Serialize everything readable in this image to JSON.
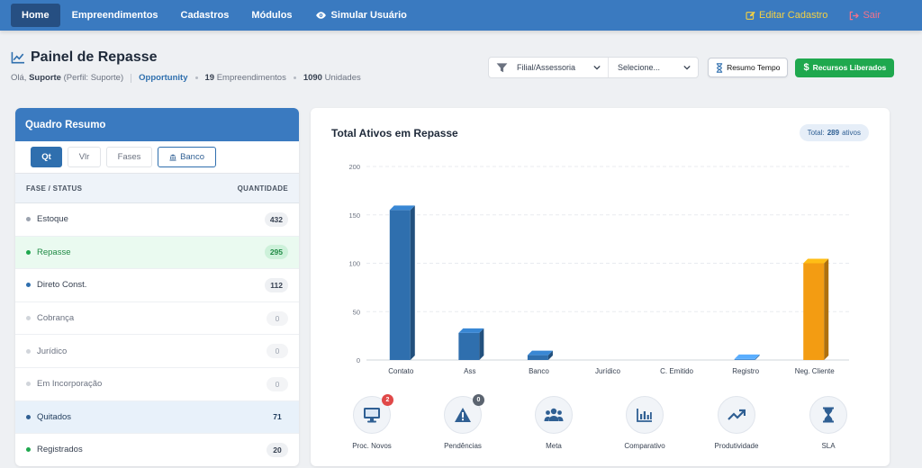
{
  "nav": {
    "items": [
      {
        "label": "Home",
        "active": true
      },
      {
        "label": "Empreendimentos"
      },
      {
        "label": "Cadastros"
      },
      {
        "label": "Módulos"
      },
      {
        "label": "Simular Usuário",
        "icon": "eye-icon"
      }
    ],
    "edit_label": "Editar Cadastro",
    "exit_label": "Sair"
  },
  "header": {
    "title": "Painel de Repasse",
    "greeting_prefix": "Olá,",
    "user": "Suporte",
    "profile": "(Perfil: Suporte)",
    "link": "Opportunity",
    "empreendimentos_count": "19",
    "empreendimentos_label": "Empreendimentos",
    "unidades_count": "1090",
    "unidades_label": "Unidades"
  },
  "filters": {
    "filial_label": "Filial/Assessoria",
    "select_label": "Selecione...",
    "tempo_label": "Resumo Tempo",
    "recursos_label": "Recursos Liberados"
  },
  "summary": {
    "title": "Quadro Resumo",
    "tabs": [
      "Qt",
      "Vlr",
      "Fases",
      "Banco"
    ],
    "col_status": "FASE / STATUS",
    "col_qty": "QUANTIDADE",
    "rows": [
      {
        "label": "Estoque",
        "value": "432",
        "color": "#9ca3af",
        "text": "#374151",
        "hl": ""
      },
      {
        "label": "Repasse",
        "value": "295",
        "color": "#1fa84e",
        "text": "#1f8a44",
        "hl": "hl-green"
      },
      {
        "label": "Direto Const.",
        "value": "112",
        "color": "#2f6fae",
        "text": "#374151",
        "hl": ""
      },
      {
        "label": "Cobrança",
        "value": "0",
        "color": "#d1d5db",
        "text": "#6b7280",
        "hl": ""
      },
      {
        "label": "Jurídico",
        "value": "0",
        "color": "#d1d5db",
        "text": "#6b7280",
        "hl": ""
      },
      {
        "label": "Em Incorporação",
        "value": "0",
        "color": "#d1d5db",
        "text": "#6b7280",
        "hl": ""
      },
      {
        "label": "Quitados",
        "value": "71",
        "color": "#2f5f93",
        "text": "#1f3b5c",
        "hl": "hl-blue"
      },
      {
        "label": "Registrados",
        "value": "20",
        "color": "#1fa84e",
        "text": "#374151",
        "hl": ""
      }
    ]
  },
  "panel": {
    "title": "Total Ativos em Repasse",
    "total_prefix": "Total:",
    "total_value": "289",
    "total_suffix": "ativos"
  },
  "chart_data": {
    "type": "bar",
    "title": "Total Ativos em Repasse",
    "categories": [
      "Contato",
      "Ass",
      "Banco",
      "Jurídico",
      "C. Emitido",
      "Registro",
      "Neg. Cliente"
    ],
    "values": [
      155,
      28,
      5,
      0,
      0,
      1,
      100
    ],
    "colors": [
      "#2f6fae",
      "#2f6fae",
      "#2f6fae",
      "#2f6fae",
      "#2f6fae",
      "#4a8fd4",
      "#f39c12"
    ],
    "yticks": [
      0,
      50,
      100,
      150,
      200
    ],
    "ylim": [
      0,
      200
    ],
    "grid": true
  },
  "shortcuts": [
    {
      "label": "Proc. Novos",
      "icon": "monitor-icon",
      "badge": "2",
      "badge_color": "#e04848"
    },
    {
      "label": "Pendências",
      "icon": "warning-icon",
      "badge": "0",
      "badge_color": "#5b6470"
    },
    {
      "label": "Meta",
      "icon": "users-icon",
      "badge": ""
    },
    {
      "label": "Comparativo",
      "icon": "bar-chart-icon",
      "badge": ""
    },
    {
      "label": "Produtividade",
      "icon": "trend-up-icon",
      "badge": ""
    },
    {
      "label": "SLA",
      "icon": "hourglass-icon",
      "badge": ""
    }
  ]
}
